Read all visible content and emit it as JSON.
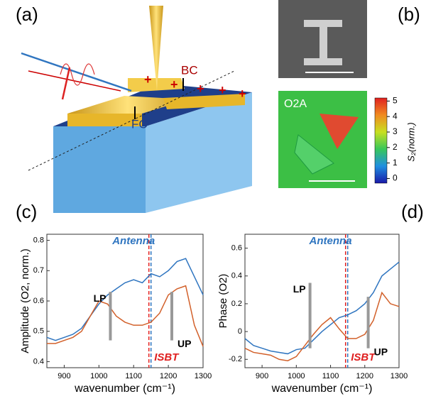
{
  "figure": {
    "panel_labels": [
      "(a)",
      "(b)",
      "(c)",
      "(d)"
    ],
    "a": {
      "labels": [
        "BC",
        "FC"
      ]
    },
    "b": {
      "map_label": "O2A",
      "colorbar": {
        "label": "S₂(norm.)",
        "lim": [
          -0.3,
          5.2
        ],
        "ticks": [
          0,
          1,
          2,
          3,
          4,
          5
        ]
      }
    }
  },
  "chart_data": [
    {
      "type": "line",
      "xlabel": "wavenumber (cm⁻¹)",
      "ylabel": "Amplitude (O2, norm.)",
      "x": [
        850,
        875,
        900,
        925,
        950,
        975,
        1000,
        1025,
        1050,
        1075,
        1100,
        1125,
        1150,
        1175,
        1200,
        1225,
        1250,
        1275,
        1300
      ],
      "series": [
        {
          "name": "Antenna",
          "color": "#2f75c0",
          "values": [
            0.48,
            0.47,
            0.48,
            0.49,
            0.51,
            0.55,
            0.59,
            0.62,
            0.64,
            0.66,
            0.67,
            0.66,
            0.69,
            0.68,
            0.7,
            0.73,
            0.74,
            0.68,
            0.62
          ]
        },
        {
          "color": "#d2602a",
          "values": [
            0.46,
            0.46,
            0.47,
            0.48,
            0.5,
            0.55,
            0.6,
            0.59,
            0.55,
            0.53,
            0.52,
            0.52,
            0.53,
            0.56,
            0.62,
            0.64,
            0.65,
            0.52,
            0.45
          ]
        }
      ],
      "reference_line": {
        "x": 1147,
        "label": "ISBT"
      },
      "markers": [
        {
          "label": "LP",
          "x": 1033,
          "y": [
            0.47,
            0.63
          ]
        },
        {
          "label": "UP",
          "x": 1210,
          "y": [
            0.47,
            0.63
          ]
        }
      ],
      "xlim": [
        850,
        1300
      ],
      "xticks": [
        900,
        1000,
        1100,
        1200,
        1300
      ],
      "ylim": [
        0.38,
        0.82
      ],
      "yticks": [
        0.4,
        0.5,
        0.6,
        0.7,
        0.8
      ]
    },
    {
      "type": "line",
      "xlabel": "wavenumber (cm⁻¹)",
      "ylabel": "Phase (O2)",
      "x": [
        850,
        875,
        900,
        925,
        950,
        975,
        1000,
        1025,
        1050,
        1075,
        1100,
        1125,
        1150,
        1175,
        1200,
        1225,
        1250,
        1275,
        1300
      ],
      "series": [
        {
          "name": "Antenna",
          "color": "#2f75c0",
          "values": [
            -0.05,
            -0.1,
            -0.12,
            -0.14,
            -0.15,
            -0.16,
            -0.13,
            -0.12,
            -0.06,
            0.0,
            0.05,
            0.1,
            0.12,
            0.15,
            0.2,
            0.28,
            0.4,
            0.45,
            0.5
          ]
        },
        {
          "color": "#d2602a",
          "values": [
            -0.12,
            -0.15,
            -0.16,
            -0.17,
            -0.2,
            -0.21,
            -0.18,
            -0.1,
            -0.02,
            0.05,
            0.1,
            0.02,
            -0.05,
            -0.05,
            -0.02,
            0.08,
            0.28,
            0.2,
            0.18
          ]
        }
      ],
      "reference_line": {
        "x": 1147,
        "label": "ISBT"
      },
      "markers": [
        {
          "label": "LP",
          "x": 1040,
          "y": [
            -0.12,
            0.35
          ]
        },
        {
          "label": "UP",
          "x": 1210,
          "y": [
            -0.12,
            0.25
          ]
        }
      ],
      "xlim": [
        850,
        1300
      ],
      "xticks": [
        900,
        1000,
        1100,
        1200,
        1300
      ],
      "ylim": [
        -0.26,
        0.7
      ],
      "yticks": [
        -0.2,
        0,
        0.2,
        0.4,
        0.6
      ]
    }
  ]
}
